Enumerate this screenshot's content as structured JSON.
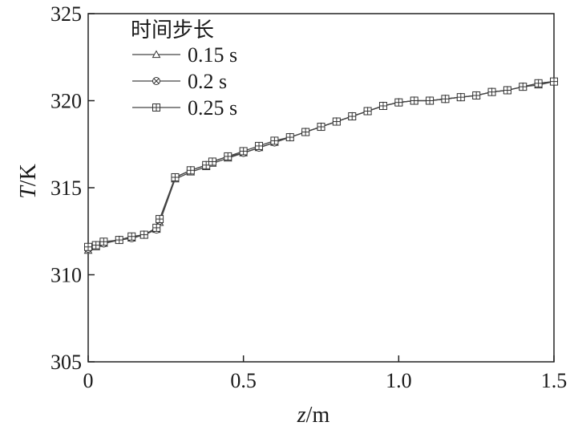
{
  "chart_data": {
    "type": "line",
    "xlabel": {
      "var": "z",
      "unit": "/m"
    },
    "ylabel": {
      "var": "T",
      "unit": "/K"
    },
    "xlim": [
      0,
      1.5
    ],
    "ylim": [
      305,
      325
    ],
    "xticks": [
      0,
      0.5,
      1.0,
      1.5
    ],
    "xtick_labels": [
      "0",
      "0.5",
      "1.0",
      "1.5"
    ],
    "yticks": [
      305,
      310,
      315,
      320,
      325
    ],
    "ytick_labels": [
      "305",
      "310",
      "315",
      "320",
      "325"
    ],
    "grid": false,
    "legend": {
      "title": "时间步长",
      "placement": "top-left",
      "entries": [
        {
          "label": "0.15 s",
          "marker": "triangle-open"
        },
        {
          "label": "0.2 s",
          "marker": "circle-x"
        },
        {
          "label": "0.25 s",
          "marker": "square-plus"
        }
      ]
    },
    "line_color": "#444444",
    "series": [
      {
        "name": "0.15 s",
        "marker": "triangle-open",
        "x": [
          0,
          0.025,
          0.05,
          0.1,
          0.14,
          0.18,
          0.22,
          0.23,
          0.28,
          0.33,
          0.38,
          0.4,
          0.45,
          0.5,
          0.55,
          0.6,
          0.65,
          0.7,
          0.75,
          0.8,
          0.85,
          0.9,
          0.95,
          1.0,
          1.05,
          1.1,
          1.15,
          1.2,
          1.25,
          1.3,
          1.35,
          1.4,
          1.45,
          1.5
        ],
        "y": [
          311.4,
          311.6,
          311.8,
          312.0,
          312.1,
          312.3,
          312.6,
          313.0,
          315.5,
          315.9,
          316.2,
          316.4,
          316.7,
          317.0,
          317.3,
          317.6,
          317.9,
          318.2,
          318.5,
          318.8,
          319.1,
          319.4,
          319.7,
          319.9,
          320.0,
          320.0,
          320.1,
          320.2,
          320.3,
          320.5,
          320.6,
          320.8,
          320.9,
          321.1
        ]
      },
      {
        "name": "0.2 s",
        "marker": "circle-x",
        "x": [
          0,
          0.025,
          0.05,
          0.1,
          0.14,
          0.18,
          0.22,
          0.23,
          0.28,
          0.33,
          0.38,
          0.4,
          0.45,
          0.5,
          0.55,
          0.6,
          0.65,
          0.7,
          0.75,
          0.8,
          0.85,
          0.9,
          0.95,
          1.0,
          1.05,
          1.1,
          1.15,
          1.2,
          1.25,
          1.3,
          1.35,
          1.4,
          1.45,
          1.5
        ],
        "y": [
          311.5,
          311.7,
          311.8,
          312.0,
          312.1,
          312.3,
          312.6,
          313.1,
          315.6,
          316.0,
          316.3,
          316.5,
          316.8,
          317.0,
          317.3,
          317.6,
          317.9,
          318.2,
          318.5,
          318.8,
          319.1,
          319.4,
          319.7,
          319.9,
          320.0,
          320.0,
          320.1,
          320.2,
          320.3,
          320.5,
          320.6,
          320.8,
          321.0,
          321.1
        ]
      },
      {
        "name": "0.25 s",
        "marker": "square-plus",
        "x": [
          0,
          0.025,
          0.05,
          0.1,
          0.14,
          0.18,
          0.22,
          0.23,
          0.28,
          0.33,
          0.38,
          0.4,
          0.45,
          0.5,
          0.55,
          0.6,
          0.65,
          0.7,
          0.75,
          0.8,
          0.85,
          0.9,
          0.95,
          1.0,
          1.05,
          1.1,
          1.15,
          1.2,
          1.25,
          1.3,
          1.35,
          1.4,
          1.45,
          1.5
        ],
        "y": [
          311.6,
          311.7,
          311.9,
          312.0,
          312.2,
          312.3,
          312.7,
          313.2,
          315.6,
          316.0,
          316.3,
          316.5,
          316.8,
          317.1,
          317.4,
          317.7,
          317.9,
          318.2,
          318.5,
          318.8,
          319.1,
          319.4,
          319.7,
          319.9,
          320.0,
          320.0,
          320.1,
          320.2,
          320.3,
          320.5,
          320.6,
          320.8,
          321.0,
          321.1
        ]
      }
    ]
  }
}
